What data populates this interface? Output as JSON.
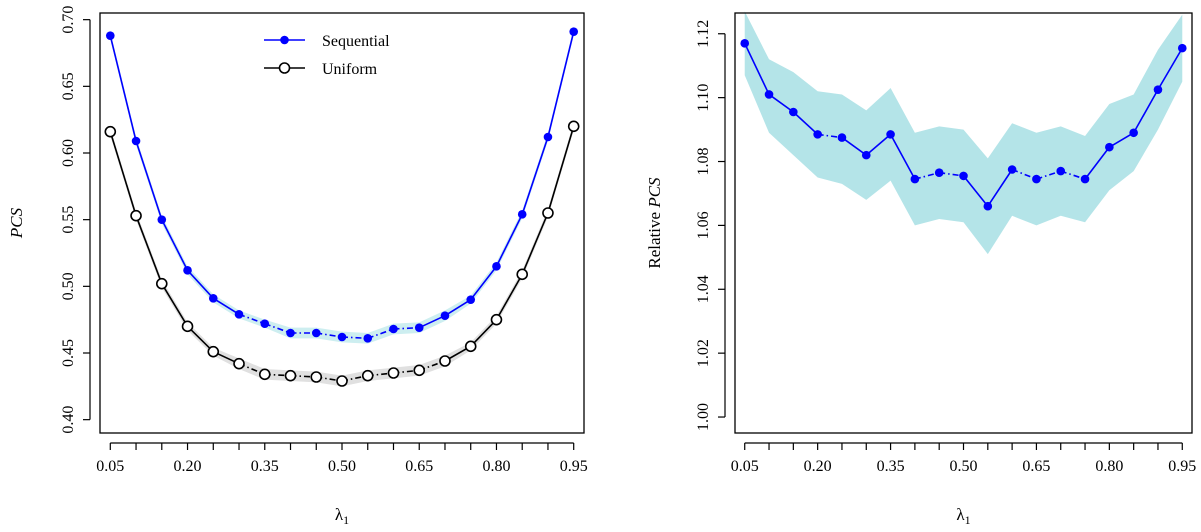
{
  "chart_data": [
    {
      "type": "line",
      "xlabel": "λ1",
      "ylabel": "PCS",
      "x": [
        0.05,
        0.1,
        0.15,
        0.2,
        0.25,
        0.3,
        0.35,
        0.4,
        0.45,
        0.5,
        0.55,
        0.6,
        0.65,
        0.7,
        0.75,
        0.8,
        0.85,
        0.9,
        0.95
      ],
      "xticks": [
        "0.05",
        "0.20",
        "0.35",
        "0.50",
        "0.65",
        "0.80",
        "0.95"
      ],
      "xtick_values": [
        0.05,
        0.2,
        0.35,
        0.5,
        0.65,
        0.8,
        0.95
      ],
      "yticks": [
        "0.40",
        "0.45",
        "0.50",
        "0.55",
        "0.60",
        "0.65",
        "0.70"
      ],
      "ytick_values": [
        0.4,
        0.45,
        0.5,
        0.55,
        0.6,
        0.65,
        0.7
      ],
      "xlim": [
        0.03,
        0.97
      ],
      "ylim": [
        0.39,
        0.705
      ],
      "legend_position": "top-center",
      "series": [
        {
          "name": "Sequential",
          "color": "#0000ff",
          "marker": "filled-circle",
          "band_color": "#cdeef0",
          "values": [
            0.688,
            0.609,
            0.55,
            0.512,
            0.491,
            0.479,
            0.472,
            0.465,
            0.465,
            0.462,
            0.461,
            0.468,
            0.469,
            0.478,
            0.49,
            0.515,
            0.554,
            0.612,
            0.691
          ],
          "band_halfwidth": [
            0.003,
            0.003,
            0.003,
            0.003,
            0.003,
            0.003,
            0.003,
            0.004,
            0.004,
            0.004,
            0.004,
            0.004,
            0.004,
            0.004,
            0.003,
            0.003,
            0.003,
            0.003,
            0.003
          ]
        },
        {
          "name": "Uniform",
          "color": "#000000",
          "marker": "open-circle",
          "band_color": "#e0e0e0",
          "values": [
            0.616,
            0.553,
            0.502,
            0.47,
            0.451,
            0.442,
            0.434,
            0.433,
            0.432,
            0.429,
            0.433,
            0.435,
            0.437,
            0.444,
            0.455,
            0.475,
            0.509,
            0.555,
            0.62
          ],
          "band_halfwidth": [
            0.003,
            0.003,
            0.003,
            0.003,
            0.003,
            0.004,
            0.004,
            0.004,
            0.004,
            0.004,
            0.004,
            0.004,
            0.004,
            0.004,
            0.003,
            0.003,
            0.003,
            0.003,
            0.003
          ]
        }
      ]
    },
    {
      "type": "line",
      "xlabel": "λ1",
      "ylabel": "Relative PCS",
      "x": [
        0.05,
        0.1,
        0.15,
        0.2,
        0.25,
        0.3,
        0.35,
        0.4,
        0.45,
        0.5,
        0.55,
        0.6,
        0.65,
        0.7,
        0.75,
        0.8,
        0.85,
        0.9,
        0.95
      ],
      "xticks": [
        "0.05",
        "0.20",
        "0.35",
        "0.50",
        "0.65",
        "0.80",
        "0.95"
      ],
      "xtick_values": [
        0.05,
        0.2,
        0.35,
        0.5,
        0.65,
        0.8,
        0.95
      ],
      "yticks": [
        "1.00",
        "1.02",
        "1.04",
        "1.06",
        "1.08",
        "1.10",
        "1.12"
      ],
      "ytick_values": [
        1.0,
        1.02,
        1.04,
        1.06,
        1.08,
        1.1,
        1.12
      ],
      "xlim": [
        0.03,
        0.97
      ],
      "ylim": [
        0.995,
        1.1265
      ],
      "series": [
        {
          "color": "#0000ff",
          "marker": "filled-circle",
          "band_color": "#b4e4e8",
          "values": [
            1.117,
            1.101,
            1.0955,
            1.0885,
            1.0875,
            1.082,
            1.0885,
            1.0745,
            1.0765,
            1.0755,
            1.066,
            1.0775,
            1.0745,
            1.077,
            1.0745,
            1.0845,
            1.089,
            1.1025,
            1.1155
          ],
          "band_upper": [
            1.127,
            1.112,
            1.108,
            1.102,
            1.101,
            1.096,
            1.103,
            1.089,
            1.091,
            1.09,
            1.081,
            1.092,
            1.089,
            1.091,
            1.088,
            1.098,
            1.101,
            1.115,
            1.126
          ],
          "band_lower": [
            1.107,
            1.089,
            1.082,
            1.075,
            1.073,
            1.068,
            1.074,
            1.06,
            1.062,
            1.061,
            1.051,
            1.063,
            1.06,
            1.063,
            1.061,
            1.071,
            1.077,
            1.09,
            1.105
          ]
        }
      ]
    }
  ]
}
